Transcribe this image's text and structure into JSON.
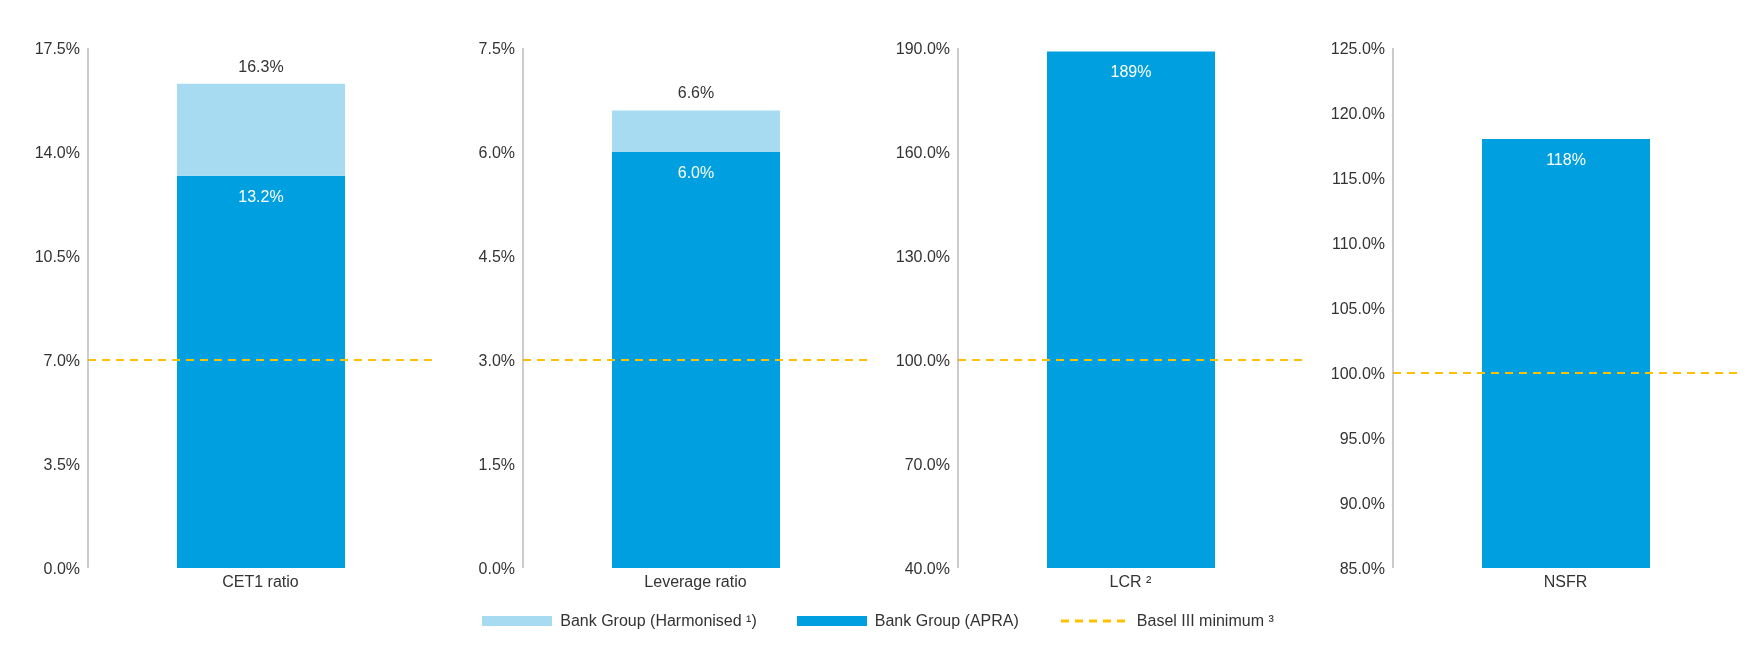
{
  "chart_data": [
    {
      "type": "bar",
      "categories": [
        "CET1 ratio"
      ],
      "stacked": true,
      "legend": "bottom",
      "series": [
        {
          "name": "Bank Group (APRA)",
          "color": "#00a0e0",
          "values": [
            13.2
          ],
          "value_labels": [
            "13.2%"
          ]
        },
        {
          "name": "Bank Group (Harmonised ¹)",
          "color": "#a6dbf2",
          "values": [
            3.1
          ]
        }
      ],
      "totals": [
        "16.3%"
      ],
      "ylim": [
        0,
        17.5
      ],
      "yticks": [
        {
          "value": 0,
          "label": "0.0%"
        },
        {
          "value": 3.5,
          "label": "3.5%"
        },
        {
          "value": 7,
          "label": "7.0%"
        },
        {
          "value": 10.5,
          "label": "10.5%"
        },
        {
          "value": 14,
          "label": "14.0%"
        },
        {
          "value": 17.5,
          "label": "17.5%"
        }
      ],
      "ref_lines": [
        {
          "axis": "y",
          "value": 7,
          "label": "Basel III minimum ³",
          "color": "#ffc000",
          "line_style": "dashed"
        }
      ]
    },
    {
      "type": "bar",
      "categories": [
        "Leverage ratio"
      ],
      "stacked": true,
      "series": [
        {
          "color": "#00a0e0",
          "values": [
            6.0
          ],
          "value_labels": [
            "6.0%"
          ]
        },
        {
          "color": "#a6dbf2",
          "values": [
            0.6
          ]
        }
      ],
      "totals": [
        "6.6%"
      ],
      "ylim": [
        0,
        7.5
      ],
      "yticks": [
        {
          "value": 0,
          "label": "0.0%"
        },
        {
          "value": 1.5,
          "label": "1.5%"
        },
        {
          "value": 3,
          "label": "3.0%"
        },
        {
          "value": 4.5,
          "label": "4.5%"
        },
        {
          "value": 6,
          "label": "6.0%"
        },
        {
          "value": 7.5,
          "label": "7.5%"
        }
      ],
      "ref_lines": [
        {
          "axis": "y",
          "value": 3,
          "color": "#ffc000",
          "line_style": "dashed"
        }
      ]
    },
    {
      "type": "bar",
      "categories": [
        "LCR ²"
      ],
      "series": [
        {
          "color": "#00a0e0",
          "values": [
            189
          ],
          "value_labels": [
            "189%"
          ]
        }
      ],
      "ylim": [
        40,
        190
      ],
      "yticks": [
        {
          "value": 40,
          "label": "40.0%"
        },
        {
          "value": 70,
          "label": "70.0%"
        },
        {
          "value": 100,
          "label": "100.0%"
        },
        {
          "value": 130,
          "label": "130.0%"
        },
        {
          "value": 160,
          "label": "160.0%"
        },
        {
          "value": 190,
          "label": "190.0%"
        }
      ],
      "ref_lines": [
        {
          "axis": "y",
          "value": 100,
          "color": "#ffc000",
          "line_style": "dashed"
        }
      ]
    },
    {
      "type": "bar",
      "categories": [
        "NSFR"
      ],
      "series": [
        {
          "color": "#00a0e0",
          "values": [
            118
          ],
          "value_labels": [
            "118%"
          ]
        }
      ],
      "ylim": [
        85,
        125
      ],
      "yticks": [
        {
          "value": 85,
          "label": "85.0%"
        },
        {
          "value": 90,
          "label": "90.0%"
        },
        {
          "value": 95,
          "label": "95.0%"
        },
        {
          "value": 100,
          "label": "100.0%"
        },
        {
          "value": 105,
          "label": "105.0%"
        },
        {
          "value": 110,
          "label": "110.0%"
        },
        {
          "value": 115,
          "label": "115.0%"
        },
        {
          "value": 120,
          "label": "120.0%"
        },
        {
          "value": 125,
          "label": "125.0%"
        }
      ],
      "ref_lines": [
        {
          "axis": "y",
          "value": 100,
          "color": "#ffc000",
          "line_style": "dashed"
        }
      ]
    }
  ]
}
